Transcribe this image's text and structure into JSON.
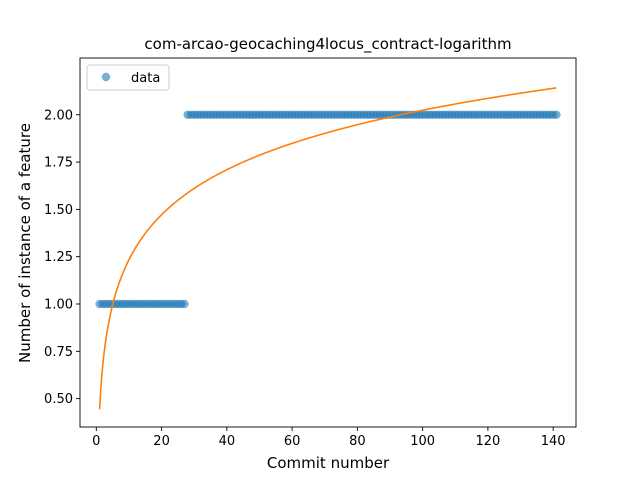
{
  "chart_data": {
    "type": "scatter",
    "title": "com-arcao-geocaching4locus_contract-logarithm",
    "xlabel": "Commit number",
    "ylabel": "Number of instance of a feature",
    "xlim": [
      -5,
      147
    ],
    "ylim": [
      0.35,
      2.3
    ],
    "x_ticks": [
      0,
      20,
      40,
      60,
      80,
      100,
      120,
      140
    ],
    "x_tick_labels": [
      "0",
      "20",
      "40",
      "60",
      "80",
      "100",
      "120",
      "140"
    ],
    "y_ticks": [
      0.5,
      0.75,
      1.0,
      1.25,
      1.5,
      1.75,
      2.0
    ],
    "y_tick_labels": [
      "0.50",
      "0.75",
      "1.00",
      "1.25",
      "1.50",
      "1.75",
      "2.00"
    ],
    "grid": false,
    "legend": {
      "position": "top-left",
      "entries": [
        "data"
      ]
    },
    "series": [
      {
        "name": "data",
        "kind": "points",
        "color": "#1f77b4",
        "segments": [
          {
            "x_start": 1,
            "x_end": 27,
            "y": 1.0
          },
          {
            "x_start": 28,
            "x_end": 141,
            "y": 2.0
          }
        ]
      },
      {
        "kind": "line",
        "color": "#ff7f0e",
        "fit": {
          "a": 0.4436,
          "b": 0.3432,
          "x_start": 1,
          "x_end": 141
        }
      }
    ]
  }
}
